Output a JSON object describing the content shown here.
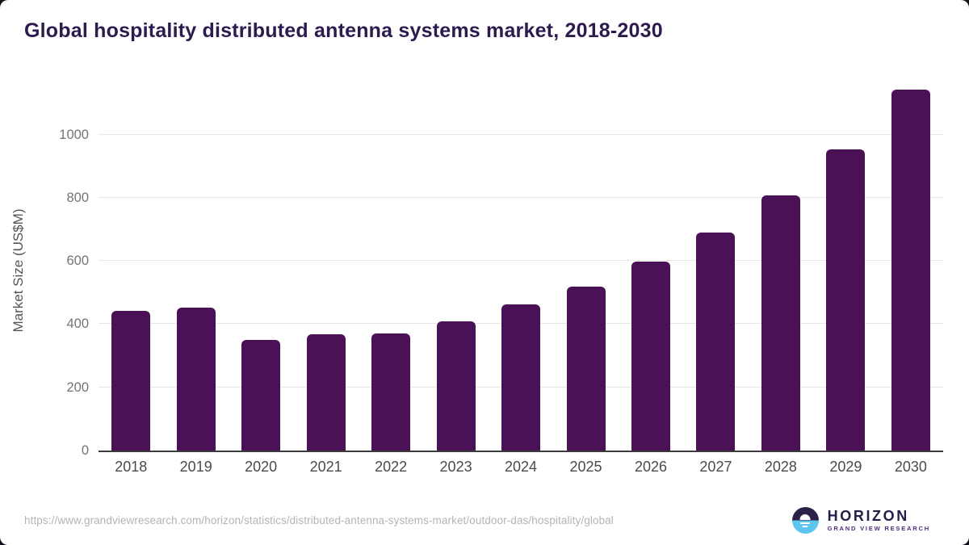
{
  "title": "Global hospitality distributed antenna systems market, 2018-2030",
  "chart_data": {
    "type": "bar",
    "categories": [
      "2018",
      "2019",
      "2020",
      "2021",
      "2022",
      "2023",
      "2024",
      "2025",
      "2026",
      "2027",
      "2028",
      "2029",
      "2030"
    ],
    "values": [
      441,
      452,
      349,
      367,
      370,
      410,
      462,
      520,
      597,
      690,
      807,
      952,
      1142
    ],
    "title": "Global hospitality distributed antenna systems market, 2018-2030",
    "xlabel": "",
    "ylabel": "Market Size (US$M)",
    "ylim": [
      0,
      1150
    ],
    "yticks": [
      0,
      200,
      400,
      600,
      800,
      1000
    ],
    "grid": true,
    "legend": "none",
    "bar_color": "#4a1157"
  },
  "colors": {
    "title_text": "#2d1a4e",
    "bar": "#4a1157",
    "gridline": "#e7e7e7",
    "axis_line": "#3b3b3b",
    "y_tick_text": "#737373",
    "x_tick_text": "#4a4a4a",
    "url_text": "#b4b4b4",
    "logo_dark": "#2b2147",
    "logo_blue": "#5ec6ee"
  },
  "footer": {
    "source_url": "https://www.grandviewresearch.com/horizon/statistics/distributed-antenna-systems-market/outdoor-das/hospitality/global",
    "logo": {
      "name": "HORIZON",
      "tagline": "GRAND VIEW RESEARCH"
    }
  }
}
